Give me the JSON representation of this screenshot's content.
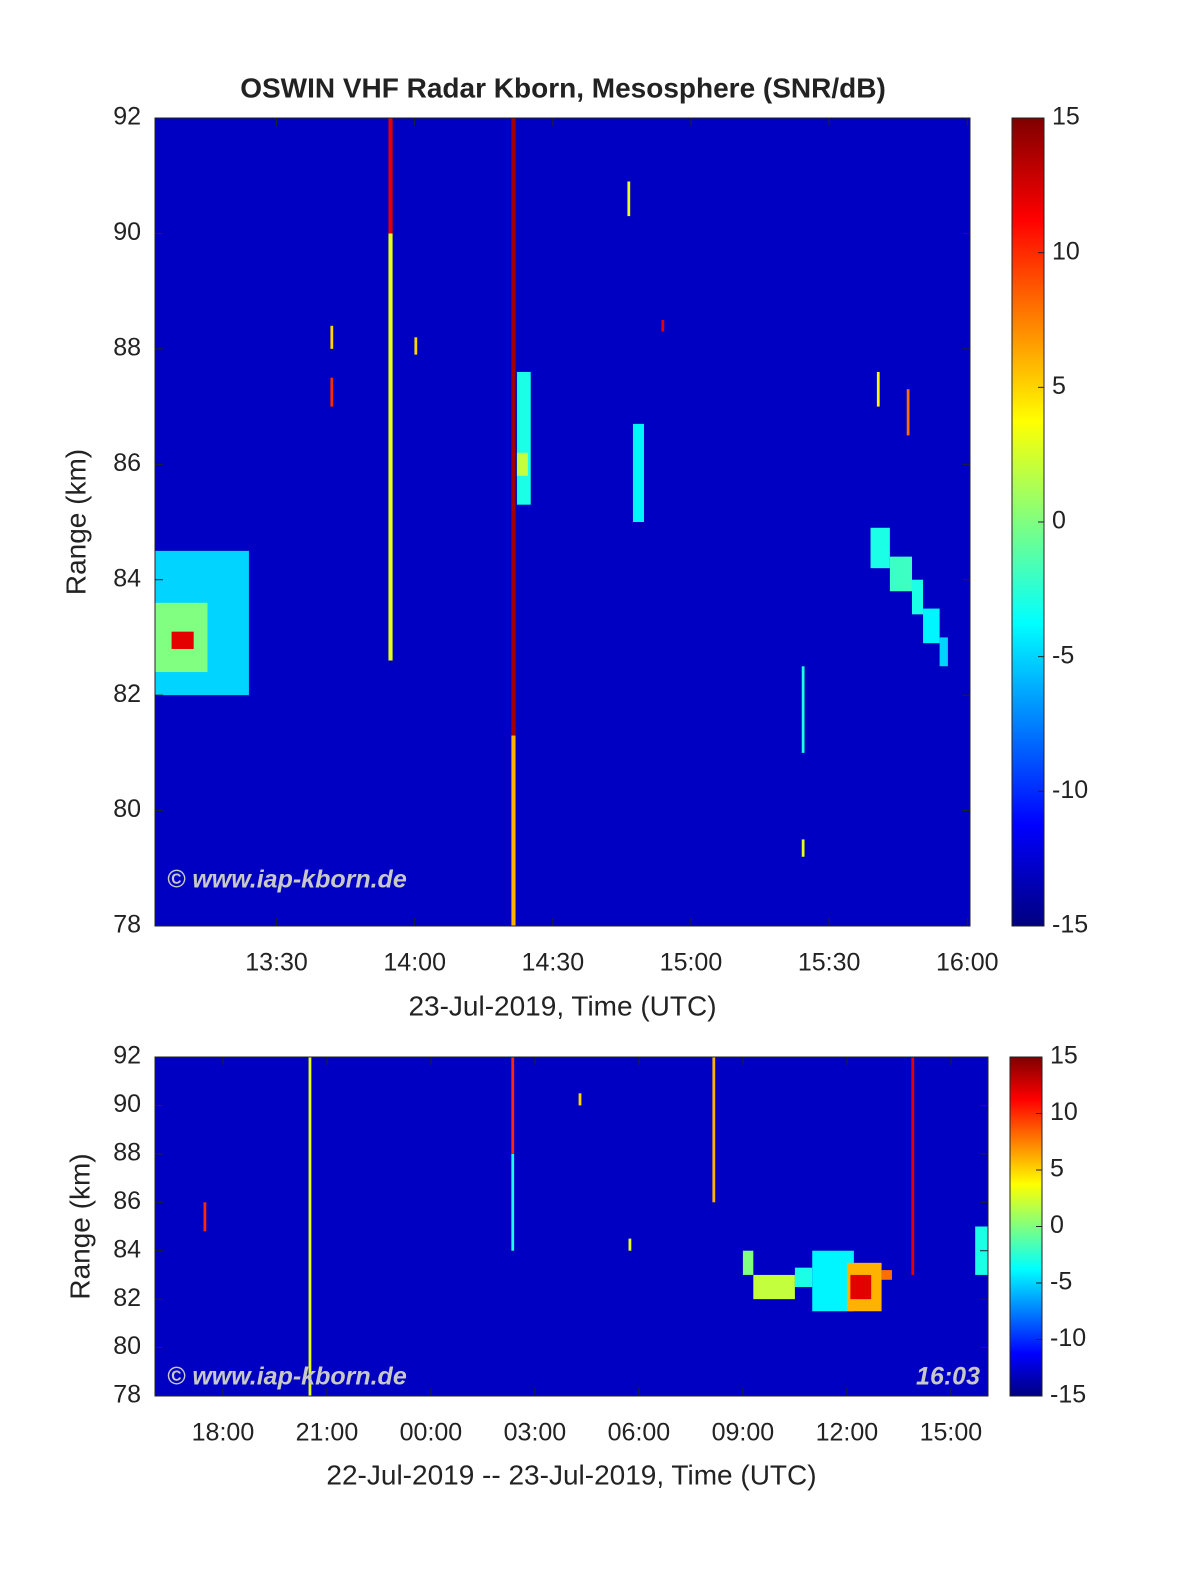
{
  "chart_data": [
    {
      "type": "heatmap",
      "title": "OSWIN VHF Radar Kborn, Mesosphere (SNR/dB)",
      "xlabel": "23-Jul-2019, Time (UTC)",
      "ylabel": "Range (km)",
      "xlim": [
        13.06,
        16.01
      ],
      "ylim": [
        78,
        92
      ],
      "xticks": [
        {
          "value": 13.5,
          "label": "13:30"
        },
        {
          "value": 14,
          "label": "14:00"
        },
        {
          "value": 14.5,
          "label": "14:30"
        },
        {
          "value": 15,
          "label": "15:00"
        },
        {
          "value": 15.5,
          "label": "15:30"
        },
        {
          "value": 16,
          "label": "16:00"
        }
      ],
      "yticks": [
        78,
        80,
        82,
        84,
        86,
        88,
        90,
        92
      ],
      "colormap": "jet",
      "clim": [
        -15,
        15
      ],
      "cticks": [
        -15,
        -10,
        -5,
        0,
        5,
        10,
        15
      ],
      "background": -13,
      "blocks": [
        {
          "x": [
            13.06,
            13.4
          ],
          "y": [
            82,
            84.5
          ],
          "value": -5
        },
        {
          "x": [
            13.06,
            13.25
          ],
          "y": [
            82.4,
            83.6
          ],
          "value": 0
        },
        {
          "x": [
            13.12,
            13.2
          ],
          "y": [
            82.8,
            83.1
          ],
          "value": 12
        },
        {
          "x": [
            13.905,
            13.92
          ],
          "y": [
            82.6,
            90
          ],
          "value": 3
        },
        {
          "x": [
            13.905,
            13.92
          ],
          "y": [
            90,
            92
          ],
          "value": 12
        },
        {
          "x": [
            14.35,
            14.365
          ],
          "y": [
            81.3,
            92
          ],
          "value": 14
        },
        {
          "x": [
            14.35,
            14.365
          ],
          "y": [
            78,
            81.3
          ],
          "value": 6
        },
        {
          "x": [
            14.37,
            14.42
          ],
          "y": [
            85.3,
            87.6
          ],
          "value": -3
        },
        {
          "x": [
            14.37,
            14.41
          ],
          "y": [
            85.8,
            86.2
          ],
          "value": 2
        },
        {
          "x": [
            14.79,
            14.83
          ],
          "y": [
            85,
            86.7
          ],
          "value": -4
        },
        {
          "x": [
            15.65,
            15.72
          ],
          "y": [
            84.2,
            84.9
          ],
          "value": -3
        },
        {
          "x": [
            15.72,
            15.8
          ],
          "y": [
            83.8,
            84.4
          ],
          "value": -2
        },
        {
          "x": [
            15.8,
            15.84
          ],
          "y": [
            83.4,
            84
          ],
          "value": -3
        },
        {
          "x": [
            15.84,
            15.9
          ],
          "y": [
            82.9,
            83.5
          ],
          "value": -4
        },
        {
          "x": [
            15.9,
            15.93
          ],
          "y": [
            82.5,
            83
          ],
          "value": -5
        },
        {
          "x": [
            13.695,
            13.705
          ],
          "y": [
            87,
            87.5
          ],
          "value": 10
        },
        {
          "x": [
            13.695,
            13.705
          ],
          "y": [
            88,
            88.4
          ],
          "value": 5
        },
        {
          "x": [
            13.999,
            14.009
          ],
          "y": [
            87.9,
            88.2
          ],
          "value": 5
        },
        {
          "x": [
            14.77,
            14.78
          ],
          "y": [
            90.3,
            90.9
          ],
          "value": 3
        },
        {
          "x": [
            14.893,
            14.903
          ],
          "y": [
            88.3,
            88.5
          ],
          "value": 12
        },
        {
          "x": [
            15.401,
            15.411
          ],
          "y": [
            79.2,
            79.5
          ],
          "value": 3
        },
        {
          "x": [
            15.401,
            15.411
          ],
          "y": [
            81,
            82.5
          ],
          "value": -3
        },
        {
          "x": [
            15.673,
            15.683
          ],
          "y": [
            87,
            87.6
          ],
          "value": 4
        },
        {
          "x": [
            15.781,
            15.791
          ],
          "y": [
            86.5,
            87.3
          ],
          "value": 8
        }
      ],
      "annotations": [
        "© www.iap-kborn.de"
      ]
    },
    {
      "type": "heatmap",
      "xlabel": "22-Jul-2019 -- 23-Jul-2019, Time (UTC)",
      "ylabel": "Range (km)",
      "xlim": [
        16.04,
        40.07
      ],
      "ylim": [
        78,
        92
      ],
      "xticks": [
        {
          "value": 18,
          "label": "18:00"
        },
        {
          "value": 21,
          "label": "21:00"
        },
        {
          "value": 24,
          "label": "00:00"
        },
        {
          "value": 27,
          "label": "03:00"
        },
        {
          "value": 30,
          "label": "06:00"
        },
        {
          "value": 33,
          "label": "09:00"
        },
        {
          "value": 36,
          "label": "12:00"
        },
        {
          "value": 39,
          "label": "15:00"
        }
      ],
      "yticks": [
        78,
        80,
        82,
        84,
        86,
        88,
        90,
        92
      ],
      "colormap": "jet",
      "clim": [
        -15,
        15
      ],
      "cticks": [
        -15,
        -10,
        -5,
        0,
        5,
        10,
        15
      ],
      "background": -13,
      "blocks": [
        {
          "x": [
            20.47,
            20.55
          ],
          "y": [
            78,
            92
          ],
          "value": 3
        },
        {
          "x": [
            26.32,
            26.4
          ],
          "y": [
            84,
            88
          ],
          "value": -3
        },
        {
          "x": [
            26.32,
            26.4
          ],
          "y": [
            88,
            92
          ],
          "value": 10
        },
        {
          "x": [
            32.12,
            32.2
          ],
          "y": [
            86,
            92
          ],
          "value": 6
        },
        {
          "x": [
            37.86,
            37.94
          ],
          "y": [
            83,
            92
          ],
          "value": 12
        },
        {
          "x": [
            33,
            33.3
          ],
          "y": [
            83,
            84
          ],
          "value": 0
        },
        {
          "x": [
            33.3,
            34.5
          ],
          "y": [
            82,
            83
          ],
          "value": 2
        },
        {
          "x": [
            34.5,
            35
          ],
          "y": [
            82.5,
            83.3
          ],
          "value": -3
        },
        {
          "x": [
            35,
            36.2
          ],
          "y": [
            81.5,
            84
          ],
          "value": -4
        },
        {
          "x": [
            36,
            37
          ],
          "y": [
            81.5,
            83.5
          ],
          "value": 6
        },
        {
          "x": [
            36.1,
            36.7
          ],
          "y": [
            82,
            83
          ],
          "value": 12
        },
        {
          "x": [
            37,
            37.3
          ],
          "y": [
            82.8,
            83.2
          ],
          "value": 8
        },
        {
          "x": [
            39.7,
            40.07
          ],
          "y": [
            83,
            85
          ],
          "value": -3
        },
        {
          "x": [
            17.44,
            17.52
          ],
          "y": [
            84.8,
            86
          ],
          "value": 10
        },
        {
          "x": [
            29.7,
            29.78
          ],
          "y": [
            84,
            84.5
          ],
          "value": 3
        },
        {
          "x": [
            28.26,
            28.34
          ],
          "y": [
            90,
            90.5
          ],
          "value": 5
        }
      ],
      "annotations": [
        "© www.iap-kborn.de",
        "16:03"
      ]
    }
  ]
}
